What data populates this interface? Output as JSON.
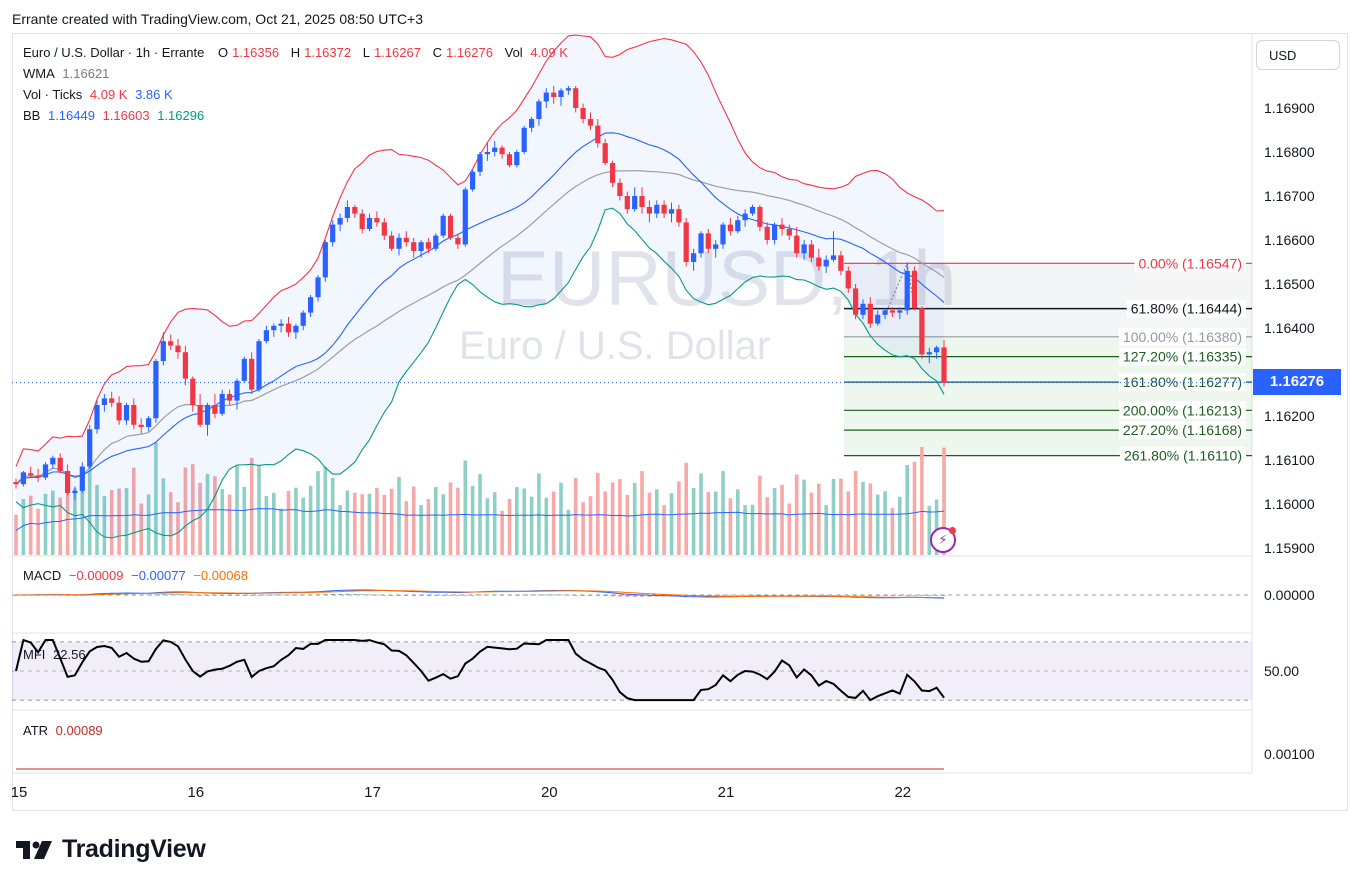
{
  "header": {
    "attribution": "Errante created with TradingView.com, Oct 21, 2025 08:50 UTC+3"
  },
  "legend": {
    "title": "Euro / U.S. Dollar · 1h · Errante",
    "o_label": "O",
    "o_value": "1.16356",
    "h_label": "H",
    "h_value": "1.16372",
    "l_label": "L",
    "l_value": "1.16267",
    "c_label": "C",
    "c_value": "1.16276",
    "vol_label": "Vol",
    "vol_value": "4.09 K",
    "wma_label": "WMA",
    "wma_value": "1.16621",
    "ticks_label": "Vol · Ticks",
    "ticks_v1": "4.09 K",
    "ticks_v2": "3.86 K",
    "bb_label": "BB",
    "bb_basis": "1.16449",
    "bb_upper": "1.16603",
    "bb_lower": "1.16296"
  },
  "currency": "USD",
  "current_price": "1.16276",
  "watermark": {
    "symbol": "EURUSD, 1h",
    "description": "Euro / U.S. Dollar"
  },
  "price_axis": [
    "1.16900",
    "1.16800",
    "1.16700",
    "1.16600",
    "1.16500",
    "1.16400",
    "1.16200",
    "1.16100",
    "1.16000",
    "1.15900"
  ],
  "time_axis": [
    "15",
    "16",
    "17",
    "20",
    "21",
    "22"
  ],
  "fib_levels": [
    {
      "label": "0.00% (1.16547)",
      "color": "#f23645"
    },
    {
      "label": "61.80% (1.16444)",
      "color": "#131722"
    },
    {
      "label": "100.00% (1.16380)",
      "color": "#9598a1"
    },
    {
      "label": "127.20% (1.16335)",
      "color": "#1b5e20"
    },
    {
      "label": "161.80% (1.16277)",
      "color": "#1b5e20"
    },
    {
      "label": "200.00% (1.16213)",
      "color": "#1b5e20"
    },
    {
      "label": "227.20% (1.16168)",
      "color": "#1b5e20"
    },
    {
      "label": "261.80% (1.16110)",
      "color": "#1b5e20"
    }
  ],
  "macd": {
    "label": "MACD",
    "v1": "−0.00009",
    "v2": "−0.00077",
    "v3": "−0.00068",
    "axis": "0.00000"
  },
  "mfi": {
    "label": "MFI",
    "value": "22.56",
    "axis": "50.00"
  },
  "atr": {
    "label": "ATR",
    "value": "0.00089",
    "axis": "0.00100"
  },
  "logo_text": "TradingView",
  "colors": {
    "up": "#2962ff",
    "down": "#f23645",
    "bb_upper": "#f23645",
    "bb_basis": "#2962ff",
    "bb_lower": "#089981",
    "wma": "#9e9e9e",
    "vol_up": "#8fd0c6",
    "vol_down": "#f7a9a7",
    "macd": "#2962ff",
    "signal": "#ff6d00",
    "mfi": "#000000",
    "atr": "#c62828"
  },
  "chart_data": {
    "type": "candlestick",
    "timeframe": "1h",
    "ylim": [
      1.1588,
      1.1698
    ],
    "candles": [
      [
        1.1605,
        1.16058,
        1.16035,
        1.16045
      ],
      [
        1.16045,
        1.16075,
        1.1604,
        1.16072
      ],
      [
        1.1607,
        1.16085,
        1.1606,
        1.16065
      ],
      [
        1.16065,
        1.1608,
        1.1605,
        1.1606
      ],
      [
        1.1606,
        1.16095,
        1.16055,
        1.1609
      ],
      [
        1.1609,
        1.1611,
        1.1608,
        1.16105
      ],
      [
        1.16105,
        1.16115,
        1.1607,
        1.16075
      ],
      [
        1.16075,
        1.1609,
        1.1602,
        1.16025
      ],
      [
        1.16025,
        1.1604,
        1.1601,
        1.1603
      ],
      [
        1.1603,
        1.16095,
        1.16025,
        1.16085
      ],
      [
        1.16085,
        1.1618,
        1.1608,
        1.1617
      ],
      [
        1.1617,
        1.16235,
        1.1616,
        1.16225
      ],
      [
        1.16225,
        1.1625,
        1.1621,
        1.1624
      ],
      [
        1.1624,
        1.16255,
        1.1622,
        1.1623
      ],
      [
        1.1623,
        1.16245,
        1.1618,
        1.1619
      ],
      [
        1.1619,
        1.1623,
        1.1618,
        1.16225
      ],
      [
        1.16225,
        1.1624,
        1.1617,
        1.1618
      ],
      [
        1.1618,
        1.16195,
        1.1616,
        1.16175
      ],
      [
        1.16175,
        1.162,
        1.16165,
        1.16195
      ],
      [
        1.16195,
        1.1633,
        1.16185,
        1.16325
      ],
      [
        1.16325,
        1.1639,
        1.16315,
        1.1637
      ],
      [
        1.1637,
        1.16385,
        1.1635,
        1.1636
      ],
      [
        1.1636,
        1.16375,
        1.1633,
        1.16345
      ],
      [
        1.16345,
        1.1636,
        1.1627,
        1.16285
      ],
      [
        1.16285,
        1.1629,
        1.1621,
        1.16225
      ],
      [
        1.16225,
        1.1625,
        1.16175,
        1.1618
      ],
      [
        1.1618,
        1.1623,
        1.16155,
        1.16225
      ],
      [
        1.16225,
        1.1625,
        1.16195,
        1.16205
      ],
      [
        1.16205,
        1.1626,
        1.162,
        1.1625
      ],
      [
        1.1625,
        1.1626,
        1.16225,
        1.16235
      ],
      [
        1.16235,
        1.16285,
        1.16215,
        1.1628
      ],
      [
        1.1628,
        1.16335,
        1.16275,
        1.1633
      ],
      [
        1.1633,
        1.16345,
        1.1625,
        1.1626
      ],
      [
        1.1626,
        1.16375,
        1.16255,
        1.1637
      ],
      [
        1.1637,
        1.16405,
        1.16365,
        1.16395
      ],
      [
        1.16395,
        1.1641,
        1.1638,
        1.16405
      ],
      [
        1.16405,
        1.1642,
        1.1639,
        1.1641
      ],
      [
        1.1641,
        1.16425,
        1.1638,
        1.1639
      ],
      [
        1.1639,
        1.1641,
        1.16375,
        1.16405
      ],
      [
        1.16405,
        1.1644,
        1.16395,
        1.16435
      ],
      [
        1.16435,
        1.16475,
        1.16425,
        1.1647
      ],
      [
        1.1647,
        1.1652,
        1.1646,
        1.16515
      ],
      [
        1.16515,
        1.166,
        1.16505,
        1.16595
      ],
      [
        1.16595,
        1.16645,
        1.16585,
        1.16635
      ],
      [
        1.16635,
        1.1666,
        1.1662,
        1.1665
      ],
      [
        1.1665,
        1.1669,
        1.1664,
        1.16675
      ],
      [
        1.16675,
        1.1668,
        1.1665,
        1.1666
      ],
      [
        1.1666,
        1.1667,
        1.16615,
        1.16625
      ],
      [
        1.16625,
        1.1666,
        1.1662,
        1.1665
      ],
      [
        1.1665,
        1.16665,
        1.1663,
        1.1664
      ],
      [
        1.1664,
        1.1665,
        1.166,
        1.1661
      ],
      [
        1.1661,
        1.1662,
        1.16575,
        1.1658
      ],
      [
        1.1658,
        1.16615,
        1.16565,
        1.16605
      ],
      [
        1.16605,
        1.1662,
        1.16585,
        1.16595
      ],
      [
        1.16595,
        1.16605,
        1.1656,
        1.16575
      ],
      [
        1.16575,
        1.166,
        1.1656,
        1.16595
      ],
      [
        1.16595,
        1.16605,
        1.1657,
        1.1658
      ],
      [
        1.1658,
        1.16615,
        1.16575,
        1.1661
      ],
      [
        1.1661,
        1.1666,
        1.16605,
        1.16655
      ],
      [
        1.16655,
        1.1666,
        1.166,
        1.16605
      ],
      [
        1.16605,
        1.16615,
        1.1658,
        1.1659
      ],
      [
        1.1659,
        1.1672,
        1.16585,
        1.16715
      ],
      [
        1.16715,
        1.1676,
        1.1671,
        1.16755
      ],
      [
        1.16755,
        1.168,
        1.16745,
        1.16795
      ],
      [
        1.16795,
        1.1682,
        1.1678,
        1.168
      ],
      [
        1.168,
        1.16825,
        1.1679,
        1.1681
      ],
      [
        1.1681,
        1.16815,
        1.16785,
        1.16795
      ],
      [
        1.16795,
        1.168,
        1.16765,
        1.1677
      ],
      [
        1.1677,
        1.16805,
        1.16765,
        1.168
      ],
      [
        1.168,
        1.1686,
        1.16795,
        1.16855
      ],
      [
        1.16855,
        1.1688,
        1.16845,
        1.16875
      ],
      [
        1.16875,
        1.1692,
        1.1686,
        1.16915
      ],
      [
        1.16915,
        1.16945,
        1.169,
        1.16935
      ],
      [
        1.16935,
        1.1695,
        1.1691,
        1.16925
      ],
      [
        1.16925,
        1.16945,
        1.16905,
        1.1694
      ],
      [
        1.1694,
        1.1695,
        1.1693,
        1.16945
      ],
      [
        1.16945,
        1.1695,
        1.1689,
        1.169
      ],
      [
        1.169,
        1.1691,
        1.16865,
        1.16875
      ],
      [
        1.16875,
        1.1689,
        1.1685,
        1.1686
      ],
      [
        1.1686,
        1.16875,
        1.1681,
        1.1682
      ],
      [
        1.1682,
        1.1683,
        1.1677,
        1.16775
      ],
      [
        1.16775,
        1.1678,
        1.1672,
        1.1673
      ],
      [
        1.1673,
        1.1674,
        1.1669,
        1.167
      ],
      [
        1.167,
        1.1671,
        1.1666,
        1.1667
      ],
      [
        1.1667,
        1.1672,
        1.16665,
        1.167
      ],
      [
        1.167,
        1.1672,
        1.1666,
        1.16675
      ],
      [
        1.16675,
        1.1669,
        1.1664,
        1.1666
      ],
      [
        1.1666,
        1.1669,
        1.1665,
        1.1668
      ],
      [
        1.1668,
        1.1669,
        1.1665,
        1.1666
      ],
      [
        1.1666,
        1.16685,
        1.1664,
        1.1667
      ],
      [
        1.1667,
        1.1668,
        1.1663,
        1.1664
      ],
      [
        1.1664,
        1.1665,
        1.1654,
        1.1655
      ],
      [
        1.1655,
        1.1658,
        1.1653,
        1.1657
      ],
      [
        1.1657,
        1.1662,
        1.1656,
        1.16615
      ],
      [
        1.16615,
        1.16625,
        1.1657,
        1.1658
      ],
      [
        1.1658,
        1.166,
        1.1656,
        1.1659
      ],
      [
        1.1659,
        1.1664,
        1.1658,
        1.16635
      ],
      [
        1.16635,
        1.1665,
        1.1661,
        1.1662
      ],
      [
        1.1662,
        1.16655,
        1.16615,
        1.16645
      ],
      [
        1.16645,
        1.1667,
        1.1663,
        1.1666
      ],
      [
        1.1666,
        1.1668,
        1.16655,
        1.16675
      ],
      [
        1.16675,
        1.1668,
        1.1662,
        1.1663
      ],
      [
        1.1663,
        1.1664,
        1.1659,
        1.166
      ],
      [
        1.166,
        1.1664,
        1.1659,
        1.16635
      ],
      [
        1.16635,
        1.1665,
        1.1661,
        1.16625
      ],
      [
        1.16625,
        1.16635,
        1.166,
        1.1661
      ],
      [
        1.1661,
        1.1663,
        1.1656,
        1.1657
      ],
      [
        1.1657,
        1.166,
        1.16555,
        1.1659
      ],
      [
        1.1659,
        1.166,
        1.1655,
        1.1656
      ],
      [
        1.1656,
        1.1658,
        1.1653,
        1.1654
      ],
      [
        1.1654,
        1.16565,
        1.16525,
        1.16555
      ],
      [
        1.16555,
        1.1662,
        1.1655,
        1.16565
      ],
      [
        1.16565,
        1.16575,
        1.1652,
        1.1653
      ],
      [
        1.1653,
        1.1654,
        1.1648,
        1.1649
      ],
      [
        1.1649,
        1.165,
        1.1642,
        1.1643
      ],
      [
        1.1643,
        1.16465,
        1.1642,
        1.16455
      ],
      [
        1.16455,
        1.1647,
        1.164,
        1.1641
      ],
      [
        1.1641,
        1.1644,
        1.16405,
        1.1643
      ],
      [
        1.1643,
        1.16445,
        1.1642,
        1.1644
      ],
      [
        1.1644,
        1.16448,
        1.16425,
        1.16435
      ],
      [
        1.16435,
        1.16447,
        1.1642,
        1.1644
      ],
      [
        1.1644,
        1.16547,
        1.1643,
        1.1653
      ],
      [
        1.1653,
        1.1654,
        1.1644,
        1.16445
      ],
      [
        1.16445,
        1.1645,
        1.1633,
        1.1634
      ],
      [
        1.1634,
        1.16355,
        1.1632,
        1.16345
      ],
      [
        1.16345,
        1.1636,
        1.1633,
        1.16356
      ],
      [
        1.16356,
        1.16372,
        1.16267,
        1.16276
      ]
    ],
    "indicators": {
      "wma": "1.16621",
      "bollinger": {
        "basis": "1.16449",
        "upper": "1.16603",
        "lower": "1.16296"
      },
      "macd": {
        "macd": -9e-05,
        "signal": -0.00077,
        "hist": -0.00068
      },
      "mfi": 22.56,
      "atr": 0.00089
    },
    "fibonacci_extension": {
      "points": [
        1.1638,
        1.16547,
        1.16444
      ],
      "levels": [
        {
          "ratio": "0.00%",
          "price": 1.16547
        },
        {
          "ratio": "61.80%",
          "price": 1.16444
        },
        {
          "ratio": "100.00%",
          "price": 1.1638
        },
        {
          "ratio": "127.20%",
          "price": 1.16335
        },
        {
          "ratio": "161.80%",
          "price": 1.16277
        },
        {
          "ratio": "200.00%",
          "price": 1.16213
        },
        {
          "ratio": "227.20%",
          "price": 1.16168
        },
        {
          "ratio": "261.80%",
          "price": 1.1611
        }
      ]
    },
    "x_ticks": [
      "15",
      "16",
      "17",
      "20",
      "21",
      "22"
    ],
    "y_ticks": [
      1.169,
      1.168,
      1.167,
      1.166,
      1.165,
      1.164,
      1.162,
      1.161,
      1.16,
      1.159
    ]
  }
}
